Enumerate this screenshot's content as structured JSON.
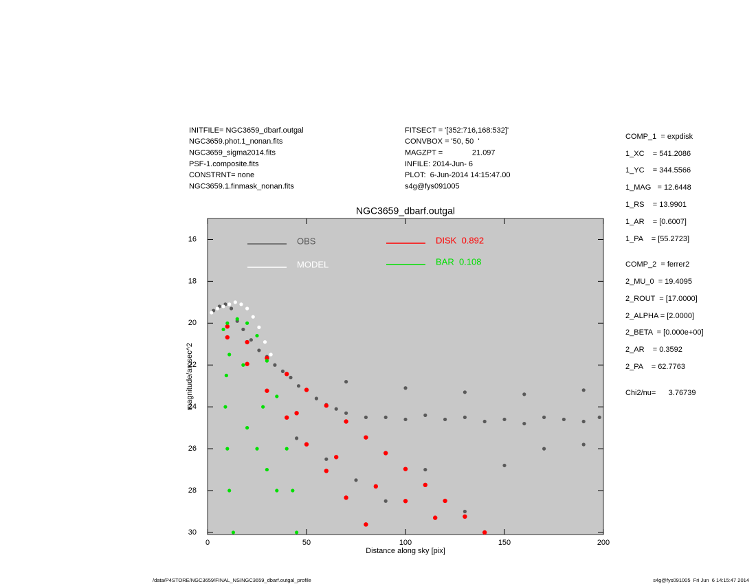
{
  "header": {
    "left": [
      "INITFILE= NGC3659_dbarf.outgal",
      "NGC3659.phot.1_nonan.fits",
      "NGC3659_sigma2014.fits",
      "PSF-1.composite.fits",
      "CONSTRNT= none",
      "NGC3659.1.finmask_nonan.fits"
    ],
    "middle": [
      "FITSECT = '[352:716,168:532]'",
      "CONVBOX = '50, 50  '",
      "MAGZPT =              21.097",
      "INFILE: 2014-Jun- 6",
      "PLOT:  6-Jun-2014 14:15:47.00",
      "s4g@fys091005"
    ],
    "right": [
      "COMP_1  = expdisk",
      "1_XC    = 541.2086",
      "1_YC    = 344.5566",
      "1_MAG   = 12.6448",
      "1_RS    = 13.9901",
      "1_AR    = [0.6007]",
      "1_PA    = [55.2723]",
      "COMP_2  = ferrer2",
      "2_MU_0  = 19.4095",
      "2_ROUT  = [17.0000]",
      "2_ALPHA = [2.0000]",
      "2_BETA  = [0.000e+00]",
      "2_AR    = 0.3592",
      "2_PA    = 62.7763",
      "Chi2/nu=      3.76739"
    ]
  },
  "footer": {
    "left": "/data/P4STORE/NGC3659/FINAL_NS/NGC3659_dbarf.outgal_profile",
    "right": "s4g@fys091005  Fri Jun  6 14:15:47 2014"
  },
  "chart_data": {
    "type": "scatter",
    "title": "NGC3659_dbarf.outgal",
    "xlabel": "Distance along sky [pix]",
    "ylabel": "magnitude/arcsec^2",
    "xlim": [
      0,
      200
    ],
    "ylim": [
      30.1,
      15
    ],
    "xticks": [
      0,
      50,
      100,
      150,
      200
    ],
    "yticks": [
      16,
      18,
      20,
      22,
      24,
      26,
      28,
      30
    ],
    "background": "#c8c8c8",
    "series": [
      {
        "name": "OBS",
        "color": "#5a5a5a",
        "x": [
          3,
          6,
          9,
          12,
          15,
          18,
          22,
          26,
          30,
          34,
          38,
          42,
          46,
          50,
          55,
          60,
          65,
          70,
          80,
          90,
          100,
          110,
          120,
          130,
          140,
          150,
          160,
          170,
          180,
          190,
          198,
          45,
          60,
          75,
          90,
          110,
          130,
          150,
          170,
          190,
          70,
          100,
          130,
          160,
          190
        ],
        "values": [
          19.4,
          19.2,
          19.1,
          19.3,
          19.9,
          20.3,
          20.8,
          21.3,
          21.6,
          22.0,
          22.3,
          22.6,
          23.0,
          23.2,
          23.6,
          23.9,
          24.1,
          24.3,
          24.5,
          24.5,
          24.6,
          24.4,
          24.6,
          24.5,
          24.7,
          24.6,
          24.8,
          24.5,
          24.6,
          24.7,
          24.5,
          25.5,
          26.5,
          27.5,
          28.5,
          27,
          29,
          26.8,
          26,
          25.8,
          22.8,
          23.1,
          23.3,
          23.4,
          23.2
        ]
      },
      {
        "name": "MODEL",
        "color": "#ffffff",
        "x": [
          2,
          5,
          8,
          11,
          14,
          17,
          20,
          23,
          26,
          29,
          32
        ],
        "values": [
          19.5,
          19.3,
          19.2,
          19.1,
          19.0,
          19.1,
          19.3,
          19.7,
          20.2,
          20.9,
          21.5
        ]
      },
      {
        "name": "DISK  0.892",
        "color": "#ff0000",
        "x": [
          10,
          10,
          20,
          20,
          30,
          30,
          40,
          40,
          50,
          50,
          60,
          60,
          70,
          70,
          80,
          80,
          90,
          100,
          110,
          120,
          130,
          140,
          85,
          100,
          115,
          45,
          65
        ],
        "values": [
          20.16,
          20.68,
          20.91,
          21.95,
          21.67,
          23.23,
          22.43,
          24.51,
          23.19,
          25.79,
          23.94,
          27.06,
          24.7,
          28.34,
          25.46,
          29.62,
          26.21,
          26.97,
          27.73,
          28.49,
          29.24,
          30.0,
          27.8,
          28.5,
          29.3,
          24.3,
          26.4
        ]
      },
      {
        "name": "BAR  0.108",
        "color": "#00e000",
        "x": [
          8,
          10,
          15,
          20,
          25,
          30,
          35,
          40,
          43,
          45,
          13,
          11,
          10,
          9,
          9.5,
          11,
          20,
          25,
          30,
          35,
          18,
          28
        ],
        "values": [
          20.3,
          20.0,
          19.8,
          20.0,
          20.6,
          21.8,
          23.5,
          26,
          28,
          30,
          30,
          28,
          26,
          24,
          22.5,
          21.5,
          25,
          26,
          27,
          28,
          22,
          24
        ]
      }
    ]
  }
}
